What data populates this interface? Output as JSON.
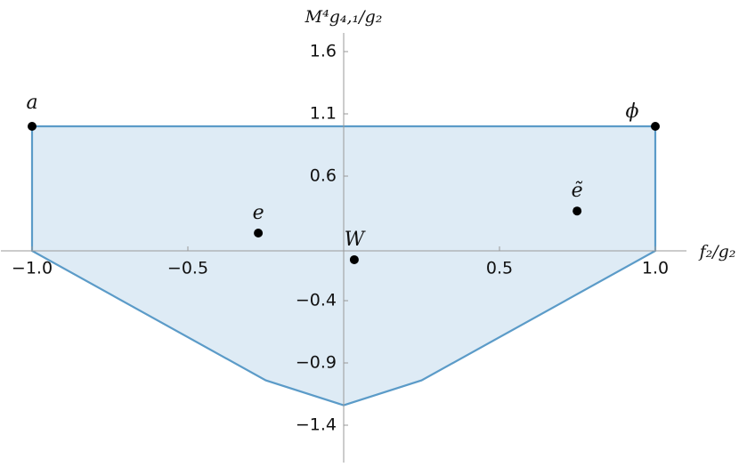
{
  "chart_data": {
    "type": "scatter",
    "x_label": "f₂/g₂",
    "y_label": "M⁴g₄,₁/g₂",
    "xlim": [
      -1.1,
      1.1
    ],
    "ylim": [
      -1.7,
      1.75
    ],
    "xticks": [
      {
        "value": -1.0,
        "label": "−1.0"
      },
      {
        "value": -0.5,
        "label": "−0.5"
      },
      0.5,
      {
        "value": 1.0,
        "label": "1.0"
      }
    ],
    "yticks": [
      1.6,
      1.1,
      0.6,
      {
        "value": -0.4,
        "label": "−0.4"
      },
      {
        "value": -0.9,
        "label": "−0.9"
      },
      {
        "value": -1.4,
        "label": "−1.4"
      }
    ],
    "region": {
      "color": "#5b9bc8",
      "fill": "#deebf5",
      "x": [
        -1.0,
        1.0,
        1.0,
        0.25,
        0.0,
        -0.25,
        -1.0
      ],
      "y": [
        1.0,
        1.0,
        0.0,
        -1.04,
        -1.24,
        -1.04,
        0.0
      ]
    },
    "points": {
      "color": "#000000",
      "labels": [
        "a",
        "ϕ",
        "e",
        "ẽ",
        "W"
      ],
      "x": [
        -1.0,
        1.0,
        -0.274,
        0.749,
        0.034
      ],
      "y": [
        1.0,
        1.0,
        0.143,
        0.32,
        -0.071
      ]
    }
  }
}
